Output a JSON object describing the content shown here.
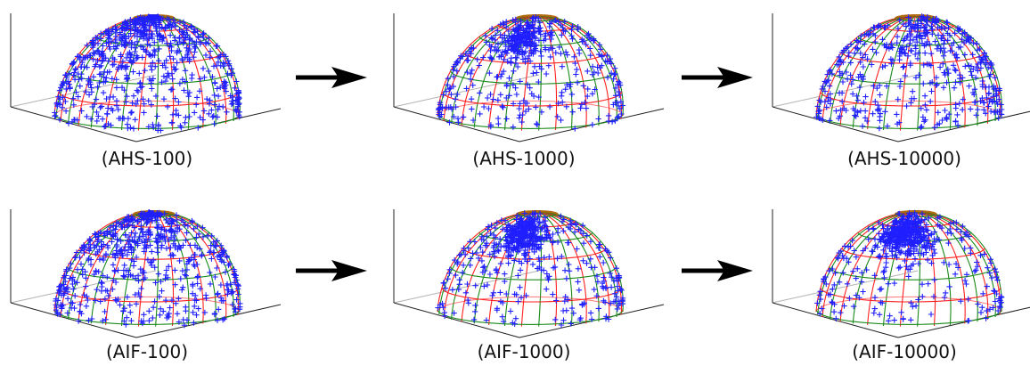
{
  "figure": {
    "rows": [
      {
        "name": "AHS",
        "panels": [
          {
            "label": "(AHS-100)",
            "cluster": 0.45,
            "scatter": 1.0
          },
          {
            "label": "(AHS-1000)",
            "cluster": 0.35,
            "scatter": 0.7
          },
          {
            "label": "(AHS-10000)",
            "cluster": 0.08,
            "scatter": 1.0
          }
        ]
      },
      {
        "name": "AIF",
        "panels": [
          {
            "label": "(AIF-100)",
            "cluster": 0.3,
            "scatter": 1.0
          },
          {
            "label": "(AIF-1000)",
            "cluster": 0.55,
            "scatter": 0.6
          },
          {
            "label": "(AIF-10000)",
            "cluster": 0.65,
            "scatter": 0.5
          }
        ]
      }
    ],
    "colors": {
      "marker": "#1f1fff",
      "meridian_red": "#ff2020",
      "meridian_green": "#1a8a1a",
      "cap": "#b06a10",
      "axes": "#222222",
      "arrow": "#000000"
    },
    "marker_icon": "plus-marker",
    "arrow_icon": "right-arrow-icon"
  }
}
